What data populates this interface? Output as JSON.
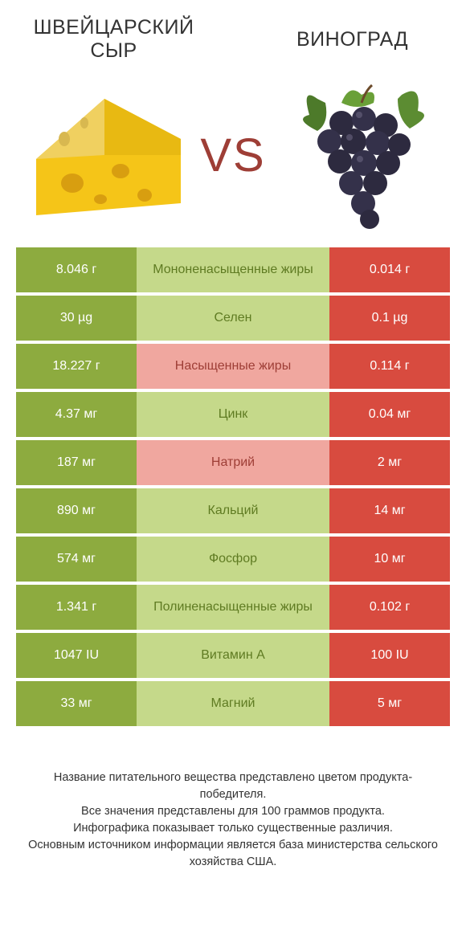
{
  "colors": {
    "left_bg": "#8dab3f",
    "left_mid_bg": "#c5d98a",
    "left_mid_text": "#5f7b22",
    "right_bg": "#d84b3f",
    "right_mid_bg": "#f0a79f",
    "right_mid_text": "#9e3e36",
    "vs_text": "#9e3e36",
    "page_bg": "#ffffff"
  },
  "header": {
    "left_title": "ШВЕЙЦАРСКИЙ СЫР",
    "right_title": "ВИНОГРАД",
    "vs": "VS"
  },
  "rows": [
    {
      "left": "8.046 г",
      "mid": "Мононенасыщенные жиры",
      "right": "0.014 г",
      "winner": "left"
    },
    {
      "left": "30 µg",
      "mid": "Селен",
      "right": "0.1 µg",
      "winner": "left"
    },
    {
      "left": "18.227 г",
      "mid": "Насыщенные жиры",
      "right": "0.114 г",
      "winner": "right"
    },
    {
      "left": "4.37 мг",
      "mid": "Цинк",
      "right": "0.04 мг",
      "winner": "left"
    },
    {
      "left": "187 мг",
      "mid": "Натрий",
      "right": "2 мг",
      "winner": "right"
    },
    {
      "left": "890 мг",
      "mid": "Кальций",
      "right": "14 мг",
      "winner": "left"
    },
    {
      "left": "574 мг",
      "mid": "Фосфор",
      "right": "10 мг",
      "winner": "left"
    },
    {
      "left": "1.341 г",
      "mid": "Полиненасыщенные жиры",
      "right": "0.102 г",
      "winner": "left"
    },
    {
      "left": "1047 IU",
      "mid": "Витамин A",
      "right": "100 IU",
      "winner": "left"
    },
    {
      "left": "33 мг",
      "mid": "Магний",
      "right": "5 мг",
      "winner": "left"
    }
  ],
  "footer": {
    "l1": "Название питательного вещества представлено цветом продукта-победителя.",
    "l2": "Все значения представлены для 100 граммов продукта.",
    "l3": "Инфографика показывает только существенные различия.",
    "l4": "Основным источником информации является база министерства сельского хозяйства США."
  }
}
